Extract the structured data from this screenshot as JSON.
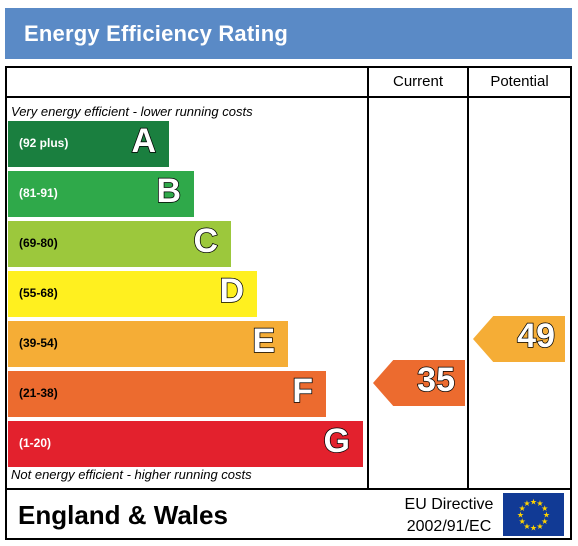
{
  "chart_data": {
    "type": "bar",
    "title": "Energy Efficiency Rating",
    "top_caption": "Very energy efficient - lower running costs",
    "bottom_caption": "Not energy efficient - higher running costs",
    "columns": [
      "Current",
      "Potential"
    ],
    "bands": [
      {
        "letter": "A",
        "range": "(92 plus)",
        "color": "#1a7f3f"
      },
      {
        "letter": "B",
        "range": "(81-91)",
        "color": "#2fa94a"
      },
      {
        "letter": "C",
        "range": "(69-80)",
        "color": "#9cc83c"
      },
      {
        "letter": "D",
        "range": "(55-68)",
        "color": "#fff01f"
      },
      {
        "letter": "E",
        "range": "(39-54)",
        "color": "#f5ad36"
      },
      {
        "letter": "F",
        "range": "(21-38)",
        "color": "#ec6b2f"
      },
      {
        "letter": "G",
        "range": "(1-20)",
        "color": "#e3212d"
      }
    ],
    "current": {
      "value": 35,
      "band": "F",
      "color": "#ec6b2f"
    },
    "potential": {
      "value": 49,
      "band": "E",
      "color": "#f5ad36"
    }
  },
  "footer": {
    "region": "England & Wales",
    "directive_line1": "EU Directive",
    "directive_line2": "2002/91/EC"
  },
  "icons": {
    "flag": "eu-flag-icon"
  }
}
